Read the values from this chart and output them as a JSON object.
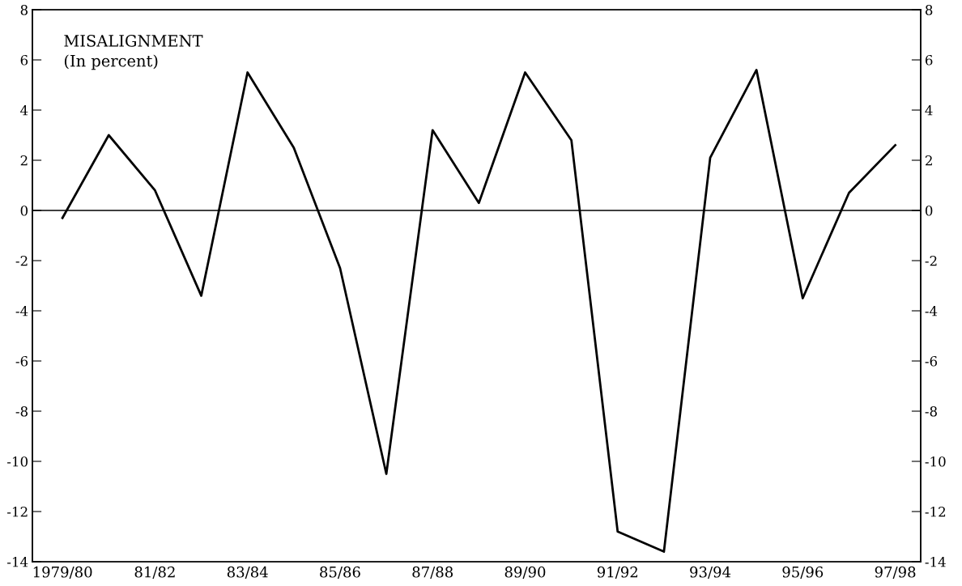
{
  "chart_data": {
    "type": "line",
    "title": "MISALIGNMENT\n(In percent)",
    "categories": [
      "1979/80",
      null,
      "81/82",
      null,
      "83/84",
      null,
      "85/86",
      null,
      "87/88",
      null,
      "89/90",
      null,
      "91/92",
      null,
      "93/94",
      null,
      "95/96",
      null,
      "97/98"
    ],
    "series": [
      {
        "color": "#000000",
        "values": [
          -0.3,
          3.0,
          0.8,
          -3.4,
          5.5,
          2.5,
          -2.3,
          -10.5,
          3.2,
          0.3,
          5.5,
          2.8,
          -12.8,
          -13.6,
          2.1,
          5.6,
          -3.5,
          0.7,
          2.6
        ]
      }
    ],
    "ylim": [
      -14,
      8
    ],
    "yticks": [
      -14,
      -12,
      -10,
      -8,
      -6,
      -4,
      -2,
      0,
      2,
      4,
      6,
      8
    ],
    "y2lim": [
      -14,
      8
    ],
    "y2ticks": [
      -14,
      -12,
      -10,
      -8,
      -6,
      -4,
      -2,
      0,
      2,
      4,
      6,
      8
    ],
    "ref_lines": [
      {
        "axis": "y",
        "value": 0,
        "color": "#000000"
      }
    ],
    "grid": false,
    "legend": false,
    "marker": "none",
    "line_style": "solid"
  }
}
